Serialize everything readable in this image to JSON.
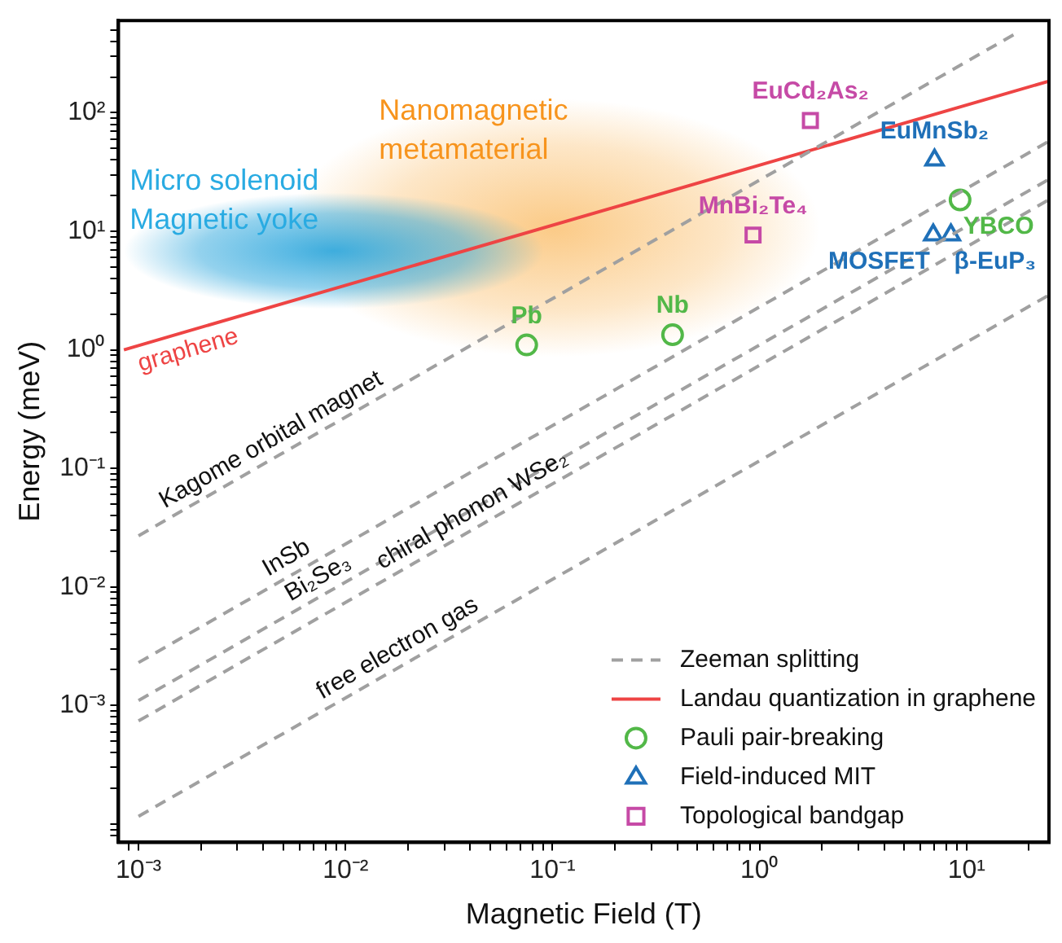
{
  "chart_data": {
    "type": "scatter",
    "xlabel": "Magnetic Field (T)",
    "ylabel": "Energy (meV)",
    "log": "xy",
    "grid": false,
    "legend": "bottom right",
    "xlim": [
      0.0008,
      25
    ],
    "xticks": [
      {
        "value": 0.0009,
        "label": null
      },
      {
        "value": 0.001,
        "label": "10⁻³"
      },
      {
        "value": 0.002,
        "label": null
      },
      {
        "value": 0.003,
        "label": null
      },
      {
        "value": 0.004,
        "label": null
      },
      {
        "value": 0.005,
        "label": null
      },
      {
        "value": 0.006,
        "label": null
      },
      {
        "value": 0.007,
        "label": null
      },
      {
        "value": 0.008,
        "label": null
      },
      {
        "value": 0.009,
        "label": null
      },
      {
        "value": 0.01,
        "label": "10⁻²"
      },
      {
        "value": 0.02,
        "label": null
      },
      {
        "value": 0.03,
        "label": null
      },
      {
        "value": 0.04,
        "label": null
      },
      {
        "value": 0.05,
        "label": null
      },
      {
        "value": 0.06,
        "label": null
      },
      {
        "value": 0.07,
        "label": null
      },
      {
        "value": 0.08,
        "label": null
      },
      {
        "value": 0.09,
        "label": null
      },
      {
        "value": 0.1,
        "label": "10⁻¹"
      },
      {
        "value": 0.2,
        "label": null
      },
      {
        "value": 0.3,
        "label": null
      },
      {
        "value": 0.4,
        "label": null
      },
      {
        "value": 0.5,
        "label": null
      },
      {
        "value": 0.6,
        "label": null
      },
      {
        "value": 0.7,
        "label": null
      },
      {
        "value": 0.8,
        "label": null
      },
      {
        "value": 0.9,
        "label": null
      },
      {
        "value": 1,
        "label": "10⁰"
      },
      {
        "value": 2,
        "label": null
      },
      {
        "value": 3,
        "label": null
      },
      {
        "value": 4,
        "label": null
      },
      {
        "value": 5,
        "label": null
      },
      {
        "value": 6,
        "label": null
      },
      {
        "value": 7,
        "label": null
      },
      {
        "value": 8,
        "label": null
      },
      {
        "value": 9,
        "label": null
      },
      {
        "value": 10,
        "label": "10¹"
      },
      {
        "value": 20,
        "label": null
      }
    ],
    "ylim": [
      7e-05,
      600
    ],
    "yticks": [
      {
        "value": 8e-05,
        "label": null
      },
      {
        "value": 9e-05,
        "label": null
      },
      {
        "value": 0.0001,
        "label": null
      },
      {
        "value": 0.0002,
        "label": null
      },
      {
        "value": 0.0003,
        "label": null
      },
      {
        "value": 0.0004,
        "label": null
      },
      {
        "value": 0.0005,
        "label": null
      },
      {
        "value": 0.0006,
        "label": null
      },
      {
        "value": 0.0007,
        "label": null
      },
      {
        "value": 0.0008,
        "label": null
      },
      {
        "value": 0.0009,
        "label": null
      },
      {
        "value": 0.001,
        "label": "10⁻³"
      },
      {
        "value": 0.002,
        "label": null
      },
      {
        "value": 0.003,
        "label": null
      },
      {
        "value": 0.004,
        "label": null
      },
      {
        "value": 0.005,
        "label": null
      },
      {
        "value": 0.006,
        "label": null
      },
      {
        "value": 0.007,
        "label": null
      },
      {
        "value": 0.008,
        "label": null
      },
      {
        "value": 0.009,
        "label": null
      },
      {
        "value": 0.01,
        "label": "10⁻²"
      },
      {
        "value": 0.02,
        "label": null
      },
      {
        "value": 0.03,
        "label": null
      },
      {
        "value": 0.04,
        "label": null
      },
      {
        "value": 0.05,
        "label": null
      },
      {
        "value": 0.06,
        "label": null
      },
      {
        "value": 0.07,
        "label": null
      },
      {
        "value": 0.08,
        "label": null
      },
      {
        "value": 0.09,
        "label": null
      },
      {
        "value": 0.1,
        "label": "10⁻¹"
      },
      {
        "value": 0.2,
        "label": null
      },
      {
        "value": 0.3,
        "label": null
      },
      {
        "value": 0.4,
        "label": null
      },
      {
        "value": 0.5,
        "label": null
      },
      {
        "value": 0.6,
        "label": null
      },
      {
        "value": 0.7,
        "label": null
      },
      {
        "value": 0.8,
        "label": null
      },
      {
        "value": 0.9,
        "label": null
      },
      {
        "value": 1,
        "label": "10⁰"
      },
      {
        "value": 2,
        "label": null
      },
      {
        "value": 3,
        "label": null
      },
      {
        "value": 4,
        "label": null
      },
      {
        "value": 5,
        "label": null
      },
      {
        "value": 6,
        "label": null
      },
      {
        "value": 7,
        "label": null
      },
      {
        "value": 8,
        "label": null
      },
      {
        "value": 9,
        "label": null
      },
      {
        "value": 10,
        "label": "10¹"
      },
      {
        "value": 20,
        "label": null
      },
      {
        "value": 30,
        "label": null
      },
      {
        "value": 40,
        "label": null
      },
      {
        "value": 50,
        "label": null
      },
      {
        "value": 60,
        "label": null
      },
      {
        "value": 70,
        "label": null
      },
      {
        "value": 80,
        "label": null
      },
      {
        "value": 90,
        "label": null
      },
      {
        "value": 100,
        "label": "10²"
      },
      {
        "value": 200,
        "label": null
      },
      {
        "value": 300,
        "label": null
      },
      {
        "value": 400,
        "label": null
      },
      {
        "value": 500,
        "label": null
      }
    ],
    "series": [
      {
        "name": "Zeeman splitting",
        "type": "line",
        "color": "#a0a0a0",
        "line_style": "dashed",
        "marker": "none",
        "x": [
          0.001,
          0.0048,
          18,
          null,
          0.001,
          0.0057,
          25,
          null,
          0.001,
          0.0081,
          25,
          null,
          0.001,
          0.045,
          25,
          null,
          0.001,
          0.0196,
          25
        ],
        "values": [
          0.027,
          0.13,
          486,
          null,
          0.0023,
          0.0131,
          57.5,
          null,
          0.0011,
          0.0089,
          27.5,
          null,
          0.00074,
          0.0333,
          18.5,
          null,
          0.000116,
          0.00227,
          2.9
        ],
        "value_labels": [
          null,
          "Kagome orbital magnet",
          null,
          null,
          null,
          "InSb",
          null,
          null,
          null,
          "Bi₂Se₃",
          null,
          null,
          null,
          "chiral phonon WSe₂",
          null,
          null,
          null,
          "free electron gas",
          null
        ]
      },
      {
        "name": "Landau quantization in graphene",
        "type": "line",
        "color": "#ee4444",
        "line_style": "solid",
        "marker": "none",
        "x": [
          0.00085,
          0.00164,
          25
        ],
        "values": [
          1.0,
          1.4,
          185
        ],
        "value_labels": [
          null,
          "graphene",
          null
        ]
      },
      {
        "name": "Pauli pair-breaking",
        "type": "scatter",
        "color": "#52b848",
        "marker": "circle",
        "x": [
          0.075,
          0.38,
          9.3
        ],
        "values": [
          1.1,
          1.34,
          18.4
        ],
        "value_labels": [
          "Pb",
          "Nb",
          "YBCO"
        ]
      },
      {
        "name": "Field-induced MIT",
        "type": "scatter",
        "color": "#1f70b8",
        "marker": "triangle",
        "x": [
          7.0,
          6.9,
          8.4
        ],
        "values": [
          40,
          9.3,
          9.3
        ],
        "value_labels": [
          "EuMnSb₂",
          "MOSFET",
          "β-EuP₃"
        ]
      },
      {
        "name": "Topological bandgap",
        "type": "scatter",
        "color": "#c64aa6",
        "marker": "square",
        "x": [
          1.76,
          0.93
        ],
        "values": [
          86,
          9.3
        ],
        "value_labels": [
          "EuCd₂As₂",
          "MnBi₂Te₄"
        ]
      }
    ],
    "annotations": [
      "Micro solenoid\nMagnetic yoke",
      "Nanomagnetic\nmetamaterial"
    ]
  }
}
